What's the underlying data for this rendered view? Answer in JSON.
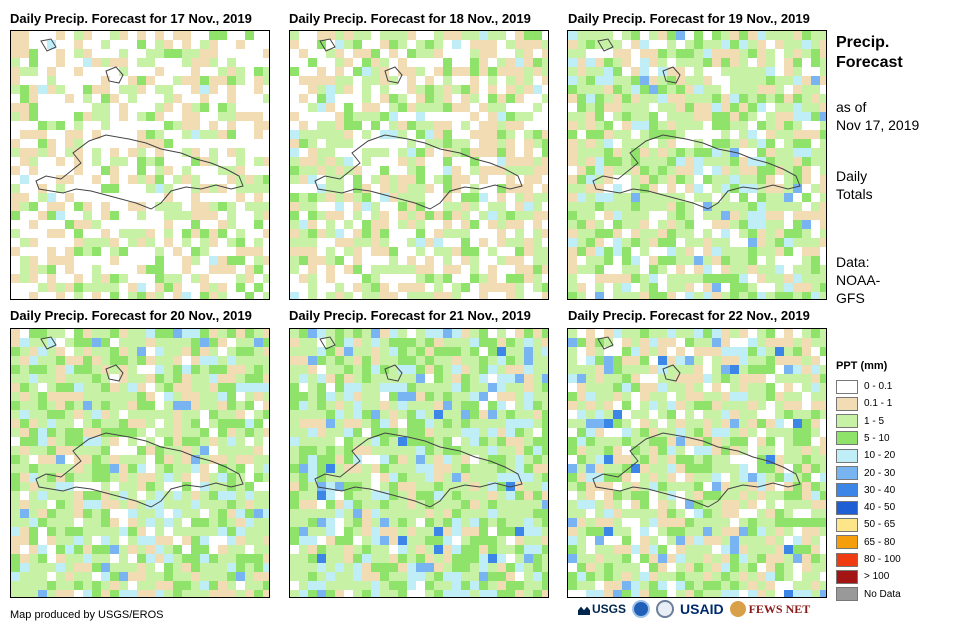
{
  "panels": [
    {
      "title": "Daily Precip. Forecast for 17 Nov., 2019"
    },
    {
      "title": "Daily Precip. Forecast for 18 Nov., 2019"
    },
    {
      "title": "Daily Precip. Forecast for 19 Nov., 2019"
    },
    {
      "title": "Daily Precip. Forecast for 20 Nov., 2019"
    },
    {
      "title": "Daily Precip. Forecast for 21 Nov., 2019"
    },
    {
      "title": "Daily Precip. Forecast for 22 Nov., 2019"
    }
  ],
  "side": {
    "title_line1": "Precip.",
    "title_line2": "Forecast",
    "asof_line1": "as of",
    "asof_line2": "Nov 17, 2019",
    "totals_line1": "Daily",
    "totals_line2": "Totals",
    "data_line1": "Data:",
    "data_line2": "NOAA-",
    "data_line3": "GFS"
  },
  "legend": {
    "title": "PPT (mm)",
    "items": [
      {
        "label": "0 - 0.1",
        "color": "#ffffff"
      },
      {
        "label": "0.1 - 1",
        "color": "#f2dcb4"
      },
      {
        "label": "1 - 5",
        "color": "#c7f2a6"
      },
      {
        "label": "5 - 10",
        "color": "#8fe36a"
      },
      {
        "label": "10 - 20",
        "color": "#bfeef6"
      },
      {
        "label": "20 - 30",
        "color": "#78b4f2"
      },
      {
        "label": "30 - 40",
        "color": "#3c86e8"
      },
      {
        "label": "40 - 50",
        "color": "#1e5fd6"
      },
      {
        "label": "50 - 65",
        "color": "#fde68a"
      },
      {
        "label": "65 - 80",
        "color": "#f59e0b"
      },
      {
        "label": "80 - 100",
        "color": "#ef3b12"
      },
      {
        "label": "> 100",
        "color": "#a31414"
      },
      {
        "label": "No Data",
        "color": "#999999"
      }
    ]
  },
  "credit": "Map produced by USGS/EROS",
  "logos": {
    "usgs": "USGS",
    "usaid": "USAID",
    "fewsnet": "FEWS NET"
  }
}
